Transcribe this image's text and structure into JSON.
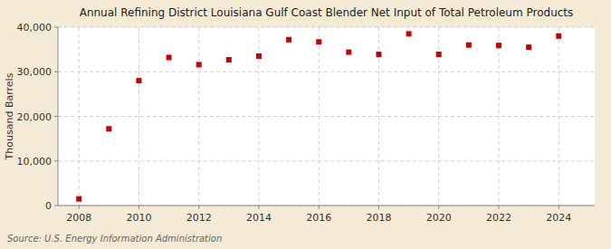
{
  "chart_data": {
    "type": "scatter",
    "title": "Annual Refining District Louisiana Gulf Coast Blender Net Input of Total Petroleum Products",
    "y_label": "Thousand Barrels",
    "source": "Source: U.S. Energy Information Administration",
    "x": [
      2008,
      2009,
      2010,
      2011,
      2012,
      2013,
      2014,
      2015,
      2016,
      2017,
      2018,
      2019,
      2020,
      2021,
      2022,
      2023,
      2024
    ],
    "values": [
      1500,
      17200,
      28000,
      33200,
      31600,
      32700,
      33500,
      37200,
      36700,
      34400,
      33900,
      38500,
      33900,
      36000,
      35900,
      35500,
      38000
    ],
    "color": "#cc0000",
    "marker": "square",
    "xlim": [
      2007.3,
      2025.2
    ],
    "xticks": [
      2008,
      2010,
      2012,
      2014,
      2016,
      2018,
      2020,
      2022,
      2024
    ],
    "ylim": [
      0,
      40000
    ],
    "yticks": [
      0,
      {
        "value": 10000,
        "label": "10,000"
      },
      {
        "value": 20000,
        "label": "20,000"
      },
      {
        "value": 30000,
        "label": "30,000"
      },
      {
        "value": 40000,
        "label": "40,000"
      }
    ],
    "grid": true
  }
}
